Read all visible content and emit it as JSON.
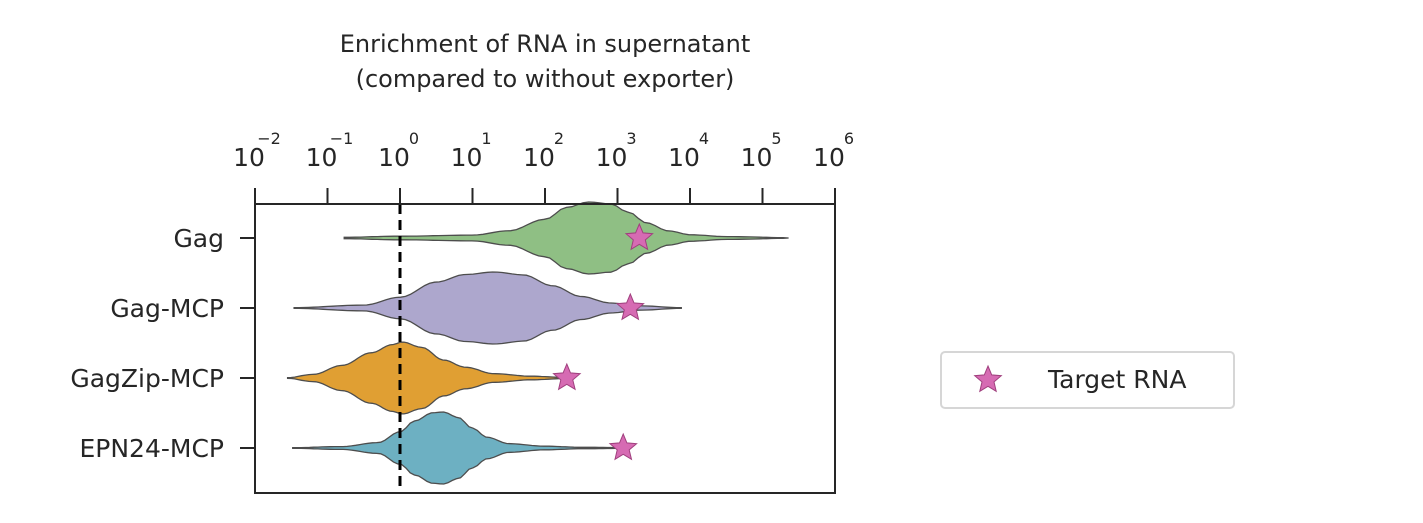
{
  "chart_data": {
    "type": "violin",
    "title": "Enrichment of RNA in supernatant",
    "subtitle": "(compared to without exporter)",
    "xlabel": "",
    "ylabel": "",
    "xscale": "log",
    "xlim": [
      0.01,
      1000000
    ],
    "x_axis_position": "top",
    "xtick_labels": [
      {
        "base": "10",
        "exp": "−2",
        "value": 0.01
      },
      {
        "base": "10",
        "exp": "−1",
        "value": 0.1
      },
      {
        "base": "10",
        "exp": "0",
        "value": 1
      },
      {
        "base": "10",
        "exp": "1",
        "value": 10
      },
      {
        "base": "10",
        "exp": "2",
        "value": 100
      },
      {
        "base": "10",
        "exp": "3",
        "value": 1000
      },
      {
        "base": "10",
        "exp": "4",
        "value": 10000
      },
      {
        "base": "10",
        "exp": "5",
        "value": 100000
      },
      {
        "base": "10",
        "exp": "6",
        "value": 1000000
      }
    ],
    "reference_line": {
      "x": 1,
      "style": "dashed",
      "color": "#000000"
    },
    "categories": [
      "Gag",
      "Gag-MCP",
      "GagZip-MCP",
      "EPN24-MCP"
    ],
    "violins": [
      {
        "category": "Gag",
        "color": "#8fbf84",
        "min": 0.17,
        "max": 230000,
        "median": 400,
        "profile": [
          [
            -0.77,
            0.02
          ],
          [
            0,
            0.05
          ],
          [
            1,
            0.08
          ],
          [
            1.5,
            0.2
          ],
          [
            2,
            0.52
          ],
          [
            2.3,
            0.85
          ],
          [
            2.6,
            1.0
          ],
          [
            2.9,
            0.95
          ],
          [
            3.15,
            0.72
          ],
          [
            3.4,
            0.42
          ],
          [
            3.7,
            0.2
          ],
          [
            4,
            0.09
          ],
          [
            4.5,
            0.04
          ],
          [
            5.36,
            0.01
          ]
        ]
      },
      {
        "category": "Gag-MCP",
        "color": "#ada7cd",
        "min": 0.035,
        "max": 7500,
        "median": 15,
        "profile": [
          [
            -1.46,
            0.01
          ],
          [
            -0.5,
            0.08
          ],
          [
            0,
            0.3
          ],
          [
            0.5,
            0.72
          ],
          [
            0.9,
            0.93
          ],
          [
            1.3,
            1.0
          ],
          [
            1.7,
            0.92
          ],
          [
            2.1,
            0.62
          ],
          [
            2.5,
            0.32
          ],
          [
            2.9,
            0.14
          ],
          [
            3.3,
            0.06
          ],
          [
            3.88,
            0.01
          ]
        ]
      },
      {
        "category": "GagZip-MCP",
        "color": "#e09f33",
        "min": 0.028,
        "max": 220,
        "median": 1,
        "profile": [
          [
            -1.55,
            0.01
          ],
          [
            -1.2,
            0.1
          ],
          [
            -0.8,
            0.35
          ],
          [
            -0.4,
            0.7
          ],
          [
            -0.1,
            0.93
          ],
          [
            0.03,
            1.0
          ],
          [
            0.3,
            0.85
          ],
          [
            0.6,
            0.5
          ],
          [
            0.9,
            0.3
          ],
          [
            1.3,
            0.12
          ],
          [
            1.8,
            0.05
          ],
          [
            2.34,
            0.01
          ]
        ]
      },
      {
        "category": "EPN24-MCP",
        "color": "#6db0c2",
        "min": 0.033,
        "max": 1400,
        "median": 2.5,
        "profile": [
          [
            -1.48,
            0.01
          ],
          [
            -0.8,
            0.04
          ],
          [
            -0.3,
            0.15
          ],
          [
            0,
            0.45
          ],
          [
            0.2,
            0.75
          ],
          [
            0.45,
            0.98
          ],
          [
            0.6,
            1.0
          ],
          [
            0.8,
            0.85
          ],
          [
            1.0,
            0.55
          ],
          [
            1.2,
            0.3
          ],
          [
            1.5,
            0.12
          ],
          [
            2,
            0.05
          ],
          [
            2.5,
            0.02
          ],
          [
            3.15,
            0.01
          ]
        ]
      }
    ],
    "target_rna": [
      {
        "category": "Gag",
        "x": 2000
      },
      {
        "category": "Gag-MCP",
        "x": 1500
      },
      {
        "category": "GagZip-MCP",
        "x": 200
      },
      {
        "category": "EPN24-MCP",
        "x": 1200
      }
    ],
    "marker_color": "#d66bb3",
    "legend": {
      "position": "right",
      "entries": [
        {
          "label": "Target RNA",
          "marker": "star-icon",
          "color": "#d66bb3"
        }
      ]
    }
  }
}
